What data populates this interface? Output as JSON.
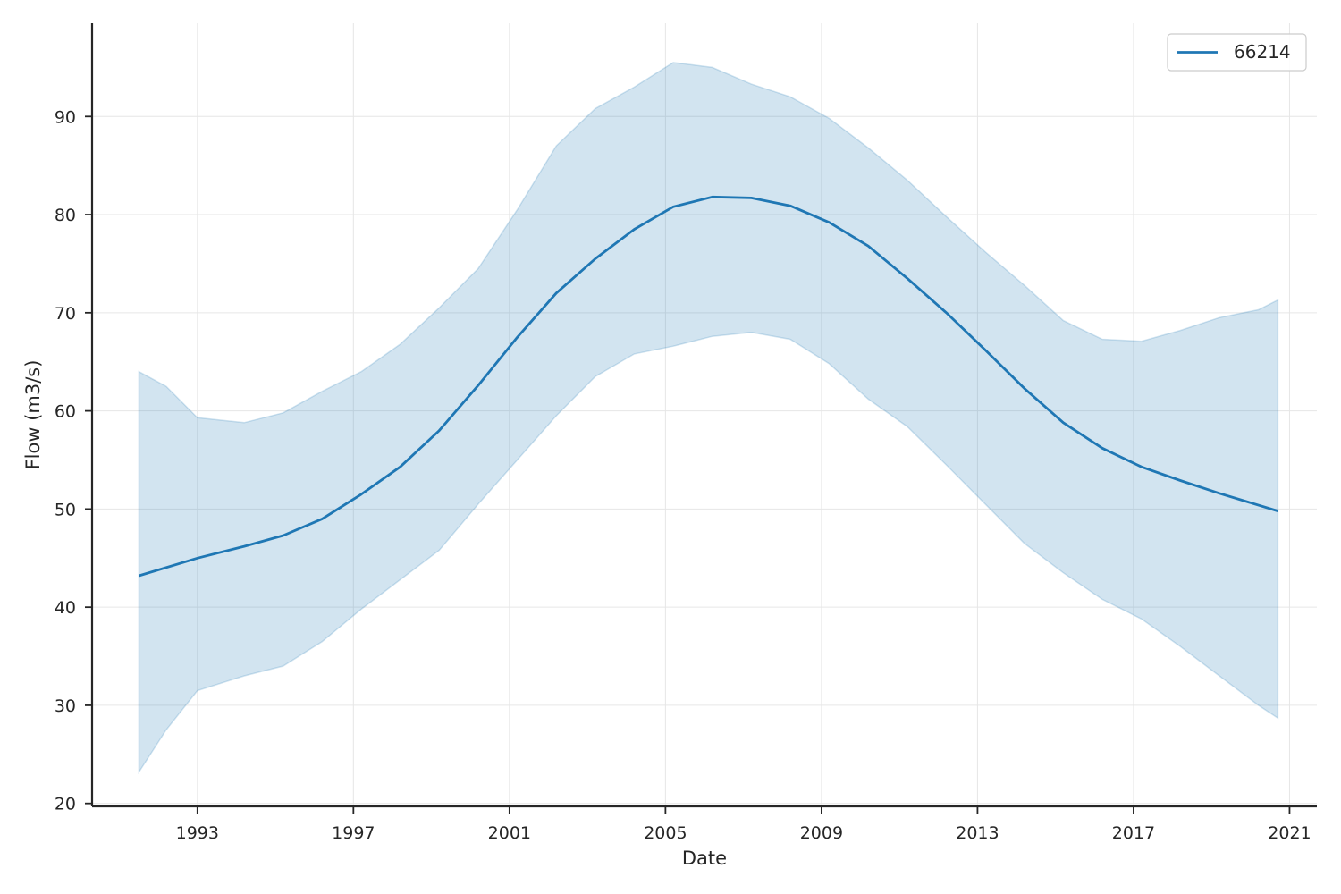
{
  "chart_data": {
    "type": "line",
    "title": "",
    "xlabel": "Date",
    "ylabel": "Flow (m3/s)",
    "xlim": [
      1990.3,
      2021.7
    ],
    "ylim": [
      19.7,
      99.5
    ],
    "x_ticks": [
      "1993",
      "1997",
      "2001",
      "2005",
      "2009",
      "2013",
      "2017",
      "2021"
    ],
    "y_ticks": [
      "20",
      "30",
      "40",
      "50",
      "60",
      "70",
      "80",
      "90"
    ],
    "grid": true,
    "legend_position": "top-right",
    "colors": {
      "line": "#1f77b4",
      "band": "#1f77b4",
      "grid": "#e6e6e6",
      "axis": "#262626"
    },
    "series": [
      {
        "name": "66214",
        "x": [
          1991.5,
          1993.0,
          1994.2,
          1995.2,
          1996.2,
          1997.2,
          1998.2,
          1999.2,
          2000.2,
          2001.2,
          2002.2,
          2003.2,
          2004.2,
          2005.2,
          2006.2,
          2007.2,
          2008.2,
          2009.2,
          2010.2,
          2011.2,
          2012.2,
          2013.2,
          2014.2,
          2015.2,
          2016.2,
          2017.2,
          2018.2,
          2019.2,
          2020.7
        ],
        "y": [
          43.2,
          45.0,
          46.2,
          47.3,
          49.0,
          51.5,
          54.3,
          58.0,
          62.6,
          67.5,
          72.0,
          75.5,
          78.5,
          80.8,
          81.8,
          81.7,
          80.9,
          79.2,
          76.8,
          73.5,
          70.0,
          66.2,
          62.3,
          58.8,
          56.2,
          54.3,
          52.9,
          51.6,
          49.8
        ]
      }
    ],
    "band": {
      "x": [
        1991.5,
        1992.2,
        1993.0,
        1994.2,
        1995.2,
        1996.2,
        1997.2,
        1998.2,
        1999.2,
        2000.2,
        2001.2,
        2002.2,
        2003.2,
        2004.2,
        2005.2,
        2006.2,
        2007.2,
        2008.2,
        2009.2,
        2010.2,
        2011.2,
        2012.2,
        2013.2,
        2014.2,
        2015.2,
        2016.2,
        2017.2,
        2018.2,
        2019.2,
        2020.2,
        2020.7
      ],
      "upper": [
        64.0,
        62.5,
        59.3,
        58.8,
        59.8,
        62.0,
        64.0,
        66.8,
        70.5,
        74.5,
        80.5,
        87.0,
        90.8,
        93.0,
        95.5,
        95.0,
        93.3,
        92.0,
        89.8,
        86.8,
        83.5,
        79.8,
        76.2,
        72.8,
        69.2,
        67.3,
        67.1,
        68.2,
        69.5,
        70.3,
        71.3
      ],
      "lower": [
        23.2,
        27.5,
        31.5,
        33.0,
        34.0,
        36.5,
        39.8,
        42.8,
        45.8,
        50.5,
        55.0,
        59.5,
        63.5,
        65.8,
        66.6,
        67.6,
        68.0,
        67.3,
        64.8,
        61.2,
        58.4,
        54.5,
        50.5,
        46.5,
        43.5,
        40.8,
        38.8,
        36.0,
        33.0,
        30.0,
        28.7
      ]
    }
  }
}
